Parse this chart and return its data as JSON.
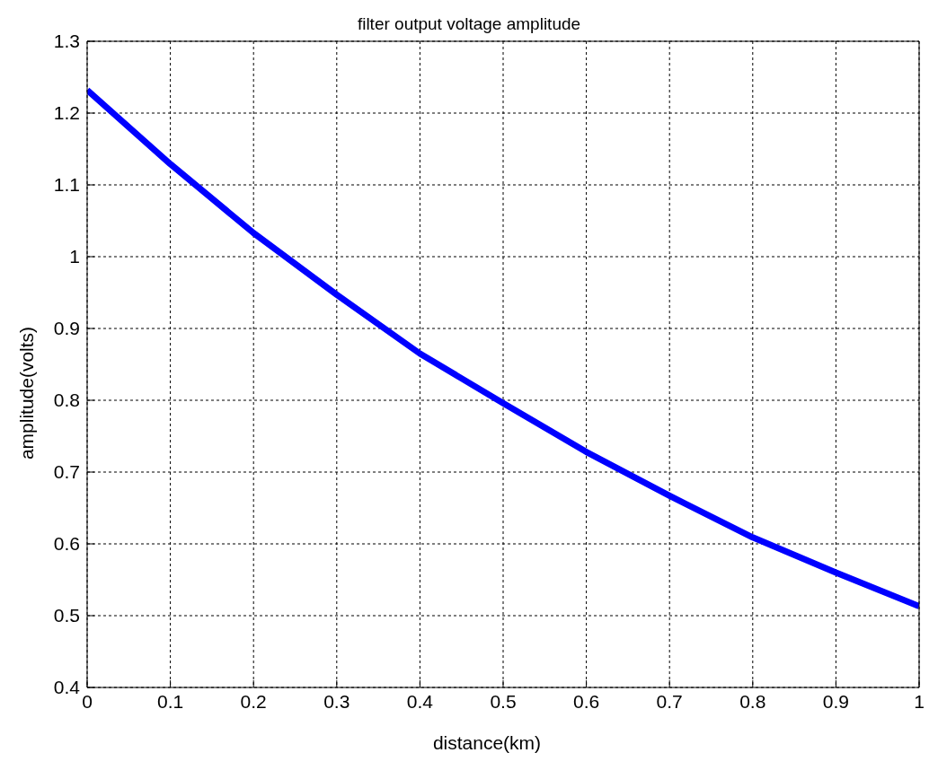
{
  "chart_data": {
    "type": "line",
    "title": "filter output voltage amplitude",
    "xlabel": "distance(km)",
    "ylabel": "amplitude(volts)",
    "x": [
      0,
      0.1,
      0.2,
      0.3,
      0.4,
      0.5,
      0.6,
      0.7,
      0.8,
      0.9,
      1
    ],
    "series": [
      {
        "color": "#0000ff",
        "values": [
          1.232,
          1.129,
          1.033,
          0.947,
          0.865,
          0.796,
          0.728,
          0.667,
          0.609,
          0.56,
          0.513
        ]
      }
    ],
    "xlim": [
      0,
      1
    ],
    "xticks": [
      0,
      0.1,
      0.2,
      0.3,
      0.4,
      0.5,
      0.6,
      0.7,
      0.8,
      0.9,
      1
    ],
    "ylim": [
      0.4,
      1.3
    ],
    "yticks": [
      0.4,
      0.5,
      0.6,
      0.7,
      0.8,
      0.9,
      1,
      1.1,
      1.2,
      1.3
    ],
    "grid": true,
    "marker": "none",
    "line_style": "solid"
  }
}
